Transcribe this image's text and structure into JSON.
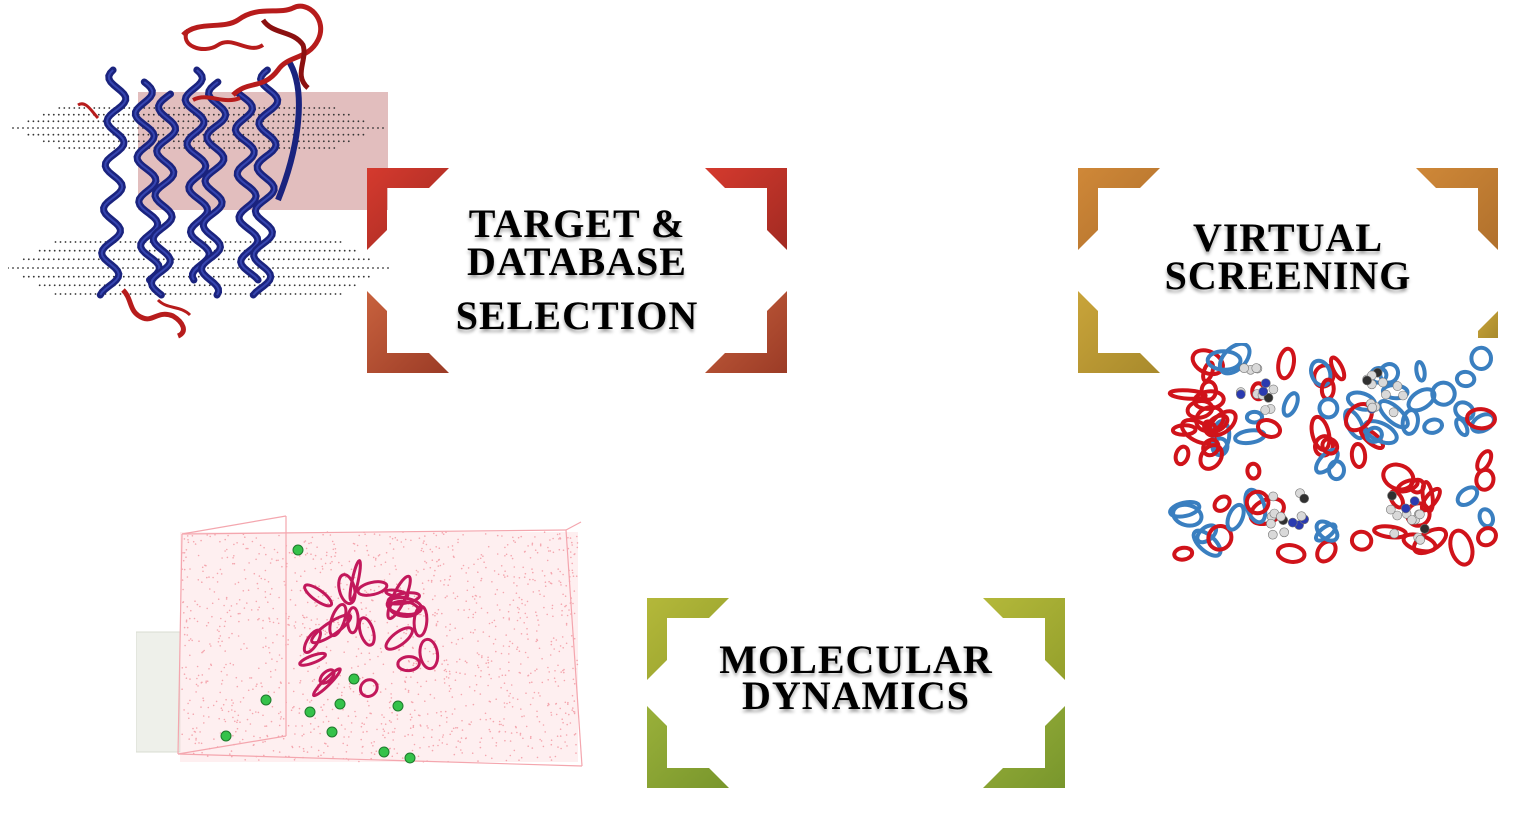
{
  "steps": [
    {
      "lines": [
        "TARGET &",
        "DATABASE",
        "SELECTION"
      ],
      "corner_color_top": "#c9352c",
      "corner_color_bottom": "#b5563a"
    },
    {
      "lines": [
        "VIRTUAL",
        "SCREENING"
      ],
      "corner_color_top": "#c98a3a",
      "corner_color_bottom": "#bca035"
    },
    {
      "lines": [
        "MOLECULAR",
        "DYNAMICS"
      ],
      "corner_color_top": "#a9b43a",
      "corner_color_bottom": "#8aa83a"
    }
  ],
  "illustrations": {
    "membrane_protein": {
      "helix_color": "#1a237e",
      "loop_color": "#b71c1c",
      "membrane_color": "#d8a8a8"
    },
    "hemoglobin": {
      "chain_a_color": "#d0131a",
      "chain_b_color": "#3a7fc0"
    },
    "solvation_box": {
      "box_color": "#f4a6ae",
      "protein_color": "#c2185b",
      "ion_color": "#35c24a"
    }
  }
}
